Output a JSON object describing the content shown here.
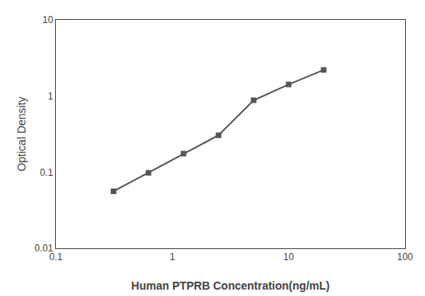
{
  "chart_data": {
    "type": "line",
    "x": [
      0.313,
      0.625,
      1.25,
      2.5,
      5.0,
      10.0,
      20.0
    ],
    "values": [
      0.056,
      0.098,
      0.175,
      0.305,
      0.88,
      1.42,
      2.2
    ],
    "xlabel": "Human PTPRB Concentration(ng/mL)",
    "ylabel": "Optical Density",
    "xlim": [
      0.1,
      100
    ],
    "ylim": [
      0.01,
      10
    ],
    "xticks": [
      0.1,
      1,
      10,
      100
    ],
    "yticks": [
      0.01,
      0.1,
      1,
      10
    ],
    "log": true,
    "grid": false,
    "color": "#555555",
    "marker": "square",
    "line_style": "solid"
  }
}
